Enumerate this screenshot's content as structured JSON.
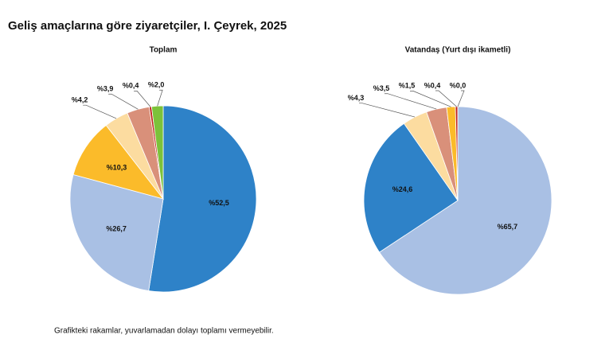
{
  "title": "Geliş amaçlarına göre ziyaretçiler, I. Çeyrek, 2025",
  "note": "Grafikteki rakamlar, yuvarlamadan dolayı toplamı vermeyebilir.",
  "chart_data": [
    {
      "type": "pie",
      "title": "Toplam",
      "values": [
        52.5,
        26.7,
        10.3,
        4.2,
        3.9,
        0.4,
        2.0
      ],
      "value_labels": [
        "%52,5",
        "%26,7",
        "%10,3",
        "%4,2",
        "%3,9",
        "%0,4",
        "%2,0"
      ],
      "colors": [
        "#2e82c8",
        "#a9c0e4",
        "#fbbb2a",
        "#fcdca0",
        "#d9907a",
        "#c0201a",
        "#7cc23a"
      ]
    },
    {
      "type": "pie",
      "title": "Vatandaş (Yurt dışı ikametli)",
      "values": [
        65.7,
        24.6,
        4.3,
        3.5,
        1.5,
        0.4,
        0.0
      ],
      "value_labels": [
        "%65,7",
        "%24,6",
        "%4,3",
        "%3,5",
        "%1,5",
        "%0,4",
        "%0,0"
      ],
      "colors": [
        "#a9c0e4",
        "#2e82c8",
        "#fcdca0",
        "#d9907a",
        "#fbbb2a",
        "#c0201a",
        "#7cc23a"
      ]
    }
  ]
}
